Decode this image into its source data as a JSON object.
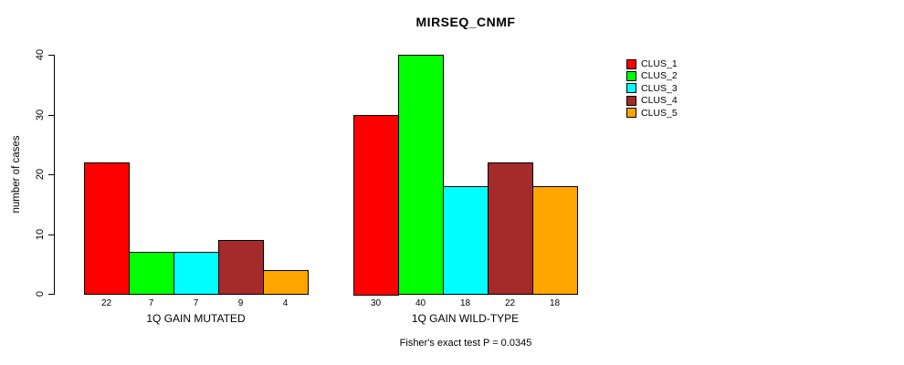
{
  "chart_data": {
    "type": "bar",
    "title": "MIRSEQ_CNMF",
    "ylabel": "number of cases",
    "ylim": [
      0,
      40
    ],
    "yticks": [
      0,
      10,
      20,
      30,
      40
    ],
    "grid": false,
    "legend_position": "right",
    "bar_value_labels": true,
    "categories": [
      "1Q GAIN MUTATED",
      "1Q GAIN WILD-TYPE"
    ],
    "series": [
      {
        "name": "CLUS_1",
        "color": "#FF0000",
        "values": [
          22,
          30
        ]
      },
      {
        "name": "CLUS_2",
        "color": "#00FF00",
        "values": [
          7,
          40
        ]
      },
      {
        "name": "CLUS_3",
        "color": "#00FFFF",
        "values": [
          7,
          18
        ]
      },
      {
        "name": "CLUS_4",
        "color": "#A52A2A",
        "values": [
          9,
          22
        ]
      },
      {
        "name": "CLUS_5",
        "color": "#FFA500",
        "values": [
          4,
          18
        ]
      }
    ],
    "annotation": "Fisher's exact test P = 0.0345"
  },
  "colors": {
    "background": "#FFFFFF",
    "bar_border": "#000000",
    "text": "#000000"
  }
}
